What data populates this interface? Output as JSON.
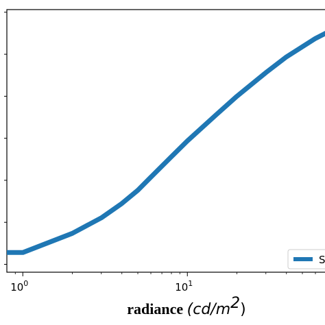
{
  "chart_data": {
    "type": "line",
    "x_scale": "log",
    "xlim": [
      0.8,
      80
    ],
    "ylim": [
      0,
      1
    ],
    "x_ticks": [
      {
        "value": 1,
        "label": "10",
        "exp": "0"
      },
      {
        "value": 10,
        "label": "10",
        "exp": "1"
      }
    ],
    "xlabel_bold": "radiance",
    "xlabel_unit": "(cd/m",
    "xlabel_exp": "2",
    "xlabel_close": ")",
    "grid": false,
    "legend_position": "bottom-right",
    "series": [
      {
        "name": "S",
        "color": "#1f77b4",
        "x": [
          0.8,
          1,
          2,
          3,
          4,
          5,
          6,
          8,
          10,
          15,
          20,
          30,
          40,
          60,
          80
        ],
        "y": [
          0.075,
          0.075,
          0.148,
          0.207,
          0.262,
          0.312,
          0.362,
          0.44,
          0.5,
          0.6,
          0.67,
          0.76,
          0.82,
          0.89,
          0.93
        ]
      }
    ]
  }
}
